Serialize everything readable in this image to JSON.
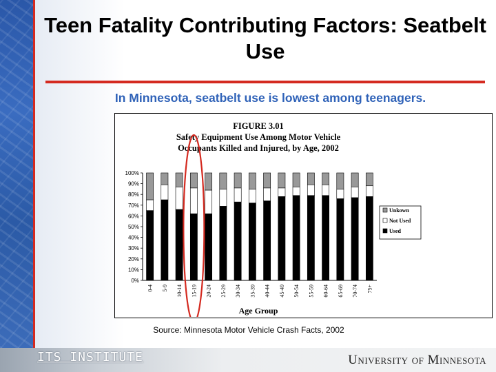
{
  "slide": {
    "title": "Teen Fatality Contributing Factors: Seatbelt Use",
    "subtitle": "In Minnesota, seatbelt use is lowest among teenagers.",
    "source": "Source: Minnesota Motor Vehicle Crash Facts, 2002",
    "footer_left_logo": "ITS INSTITUTE",
    "footer_right_logo": "University of Minnesota",
    "colors": {
      "title_rule": "#d42a20",
      "subtitle": "#2f62b8",
      "highlight": "#d42a20"
    }
  },
  "chart_data": {
    "type": "bar",
    "stacked": true,
    "figure_label": "FIGURE 3.01",
    "title_line1": "Safety Equipment Use Among Motor Vehicle",
    "title_line2": "Occupants Killed and Injured, by Age, 2002",
    "xlabel": "Age Group",
    "ylabel": "",
    "ylim": [
      0,
      100
    ],
    "yticks": [
      "0%",
      "10%",
      "20%",
      "30%",
      "40%",
      "50%",
      "60%",
      "70%",
      "80%",
      "90%",
      "100%"
    ],
    "categories": [
      "0-4",
      "5-9",
      "10-14",
      "15-19",
      "20-24",
      "25-29",
      "30-34",
      "35-39",
      "40-44",
      "45-49",
      "50-54",
      "55-59",
      "60-64",
      "65-69",
      "70-74",
      "75+"
    ],
    "series": [
      {
        "name": "Used",
        "color": "#000000",
        "values": [
          65,
          75,
          66,
          62,
          62,
          69,
          73,
          72,
          74,
          78,
          79,
          79,
          79,
          76,
          77,
          78
        ]
      },
      {
        "name": "Not Used",
        "color": "#ffffff",
        "values": [
          10,
          14,
          21,
          24,
          22,
          16,
          13,
          13,
          12,
          8,
          8,
          10,
          10,
          9,
          10,
          10
        ]
      },
      {
        "name": "Unkown",
        "color": "#999999",
        "values": [
          25,
          11,
          13,
          14,
          16,
          15,
          14,
          15,
          14,
          14,
          13,
          11,
          11,
          15,
          13,
          12
        ]
      }
    ],
    "legend_order": [
      "Unkown",
      "Not Used",
      "Used"
    ],
    "legend_position": "right",
    "highlight_category": "15-19"
  }
}
